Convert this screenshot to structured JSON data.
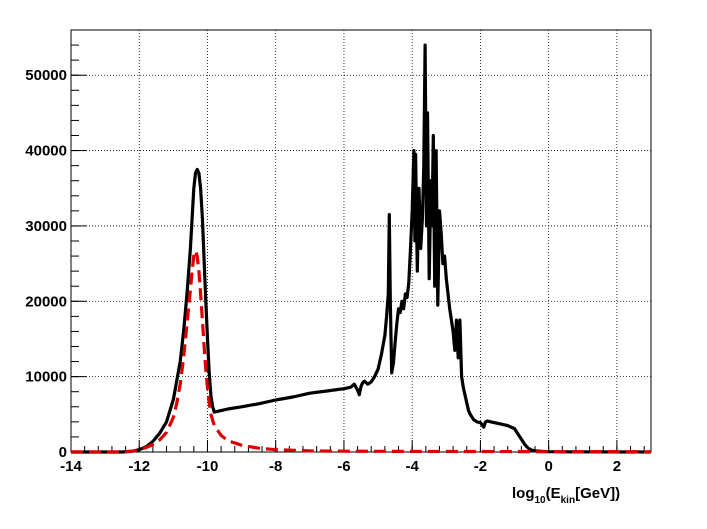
{
  "chart_data": {
    "type": "line",
    "title": "",
    "xlabel": {
      "main": "log",
      "sub1": "10",
      "mid": "(E",
      "sub2": "kin",
      "end": "[GeV])"
    },
    "ylabel": "",
    "xlim": [
      -14,
      3
    ],
    "ylim": [
      0,
      56000
    ],
    "grid": true,
    "x_ticks": [
      -14,
      -12,
      -10,
      -8,
      -6,
      -4,
      -2,
      0,
      2
    ],
    "y_ticks": [
      0,
      10000,
      20000,
      30000,
      40000,
      50000
    ],
    "series": [
      {
        "color": "#000000",
        "style": "solid",
        "points": [
          [
            -14.0,
            0
          ],
          [
            -12.5,
            0
          ],
          [
            -12.2,
            100
          ],
          [
            -12.0,
            300
          ],
          [
            -11.8,
            700
          ],
          [
            -11.6,
            1400
          ],
          [
            -11.4,
            2500
          ],
          [
            -11.2,
            4000
          ],
          [
            -11.0,
            7000
          ],
          [
            -10.8,
            12000
          ],
          [
            -10.7,
            16000
          ],
          [
            -10.6,
            21000
          ],
          [
            -10.5,
            27000
          ],
          [
            -10.45,
            31000
          ],
          [
            -10.4,
            35000
          ],
          [
            -10.35,
            37000
          ],
          [
            -10.3,
            37500
          ],
          [
            -10.25,
            37000
          ],
          [
            -10.2,
            35000
          ],
          [
            -10.15,
            31000
          ],
          [
            -10.1,
            25500
          ],
          [
            -10.05,
            20000
          ],
          [
            -10.0,
            15000
          ],
          [
            -9.95,
            10500
          ],
          [
            -9.9,
            7500
          ],
          [
            -9.85,
            6000
          ],
          [
            -9.8,
            5300
          ],
          [
            -9.6,
            5500
          ],
          [
            -9.4,
            5700
          ],
          [
            -9.0,
            6000
          ],
          [
            -8.5,
            6400
          ],
          [
            -8.0,
            6900
          ],
          [
            -7.5,
            7300
          ],
          [
            -7.0,
            7800
          ],
          [
            -6.5,
            8100
          ],
          [
            -6.0,
            8400
          ],
          [
            -5.8,
            8600
          ],
          [
            -5.7,
            9000
          ],
          [
            -5.6,
            8200
          ],
          [
            -5.55,
            7600
          ],
          [
            -5.5,
            8700
          ],
          [
            -5.45,
            9200
          ],
          [
            -5.4,
            9400
          ],
          [
            -5.3,
            9000
          ],
          [
            -5.2,
            9300
          ],
          [
            -5.1,
            10000
          ],
          [
            -5.0,
            11000
          ],
          [
            -4.9,
            13000
          ],
          [
            -4.8,
            15500
          ],
          [
            -4.75,
            18000
          ],
          [
            -4.7,
            21000
          ],
          [
            -4.67,
            31500
          ],
          [
            -4.64,
            20000
          ],
          [
            -4.6,
            10500
          ],
          [
            -4.55,
            11800
          ],
          [
            -4.5,
            14500
          ],
          [
            -4.45,
            17000
          ],
          [
            -4.4,
            19000
          ],
          [
            -4.35,
            18500
          ],
          [
            -4.3,
            20000
          ],
          [
            -4.25,
            19000
          ],
          [
            -4.2,
            21000
          ],
          [
            -4.15,
            20500
          ],
          [
            -4.1,
            22500
          ],
          [
            -4.05,
            27000
          ],
          [
            -4.0,
            32000
          ],
          [
            -3.95,
            40000
          ],
          [
            -3.92,
            28000
          ],
          [
            -3.9,
            39500
          ],
          [
            -3.85,
            24000
          ],
          [
            -3.8,
            35000
          ],
          [
            -3.75,
            27000
          ],
          [
            -3.7,
            31000
          ],
          [
            -3.66,
            38000
          ],
          [
            -3.62,
            54000
          ],
          [
            -3.58,
            30000
          ],
          [
            -3.55,
            45000
          ],
          [
            -3.5,
            23000
          ],
          [
            -3.45,
            36000
          ],
          [
            -3.42,
            30000
          ],
          [
            -3.38,
            42000
          ],
          [
            -3.34,
            22000
          ],
          [
            -3.3,
            40000
          ],
          [
            -3.25,
            19500
          ],
          [
            -3.2,
            32000
          ],
          [
            -3.15,
            29000
          ],
          [
            -3.1,
            25000
          ],
          [
            -3.05,
            26000
          ],
          [
            -3.0,
            23000
          ],
          [
            -2.9,
            19000
          ],
          [
            -2.8,
            16000
          ],
          [
            -2.75,
            13500
          ],
          [
            -2.7,
            17500
          ],
          [
            -2.65,
            12500
          ],
          [
            -2.6,
            17500
          ],
          [
            -2.55,
            10000
          ],
          [
            -2.5,
            8500
          ],
          [
            -2.45,
            7500
          ],
          [
            -2.4,
            6500
          ],
          [
            -2.35,
            5500
          ],
          [
            -2.3,
            5000
          ],
          [
            -2.2,
            4300
          ],
          [
            -2.1,
            4000
          ],
          [
            -2.0,
            3900
          ],
          [
            -1.9,
            3300
          ],
          [
            -1.85,
            4000
          ],
          [
            -1.8,
            4100
          ],
          [
            -1.6,
            3900
          ],
          [
            -1.4,
            3700
          ],
          [
            -1.2,
            3500
          ],
          [
            -1.0,
            3100
          ],
          [
            -0.9,
            2400
          ],
          [
            -0.8,
            1700
          ],
          [
            -0.7,
            1000
          ],
          [
            -0.6,
            500
          ],
          [
            -0.5,
            250
          ],
          [
            -0.4,
            150
          ],
          [
            -0.2,
            80
          ],
          [
            0.0,
            40
          ],
          [
            0.5,
            20
          ],
          [
            3.0,
            0
          ]
        ]
      },
      {
        "color": "#dd0000",
        "style": "dashed",
        "points": [
          [
            -14.0,
            0
          ],
          [
            -12.5,
            0
          ],
          [
            -12.2,
            100
          ],
          [
            -12.0,
            300
          ],
          [
            -11.8,
            600
          ],
          [
            -11.6,
            1000
          ],
          [
            -11.4,
            1600
          ],
          [
            -11.2,
            2600
          ],
          [
            -11.0,
            4600
          ],
          [
            -10.9,
            6500
          ],
          [
            -10.8,
            9000
          ],
          [
            -10.7,
            12500
          ],
          [
            -10.6,
            17000
          ],
          [
            -10.5,
            21500
          ],
          [
            -10.45,
            24000
          ],
          [
            -10.4,
            26000
          ],
          [
            -10.35,
            26700
          ],
          [
            -10.3,
            26000
          ],
          [
            -10.25,
            24000
          ],
          [
            -10.2,
            21000
          ],
          [
            -10.15,
            17500
          ],
          [
            -10.1,
            14000
          ],
          [
            -10.05,
            11000
          ],
          [
            -10.0,
            8500
          ],
          [
            -9.95,
            6500
          ],
          [
            -9.9,
            5000
          ],
          [
            -9.8,
            3500
          ],
          [
            -9.6,
            2200
          ],
          [
            -9.4,
            1500
          ],
          [
            -9.0,
            900
          ],
          [
            -8.5,
            500
          ],
          [
            -8.0,
            300
          ],
          [
            -7.0,
            150
          ],
          [
            -6.0,
            100
          ],
          [
            -4.0,
            80
          ],
          [
            -2.0,
            60
          ],
          [
            0.0,
            40
          ],
          [
            3.0,
            30
          ]
        ]
      }
    ]
  }
}
